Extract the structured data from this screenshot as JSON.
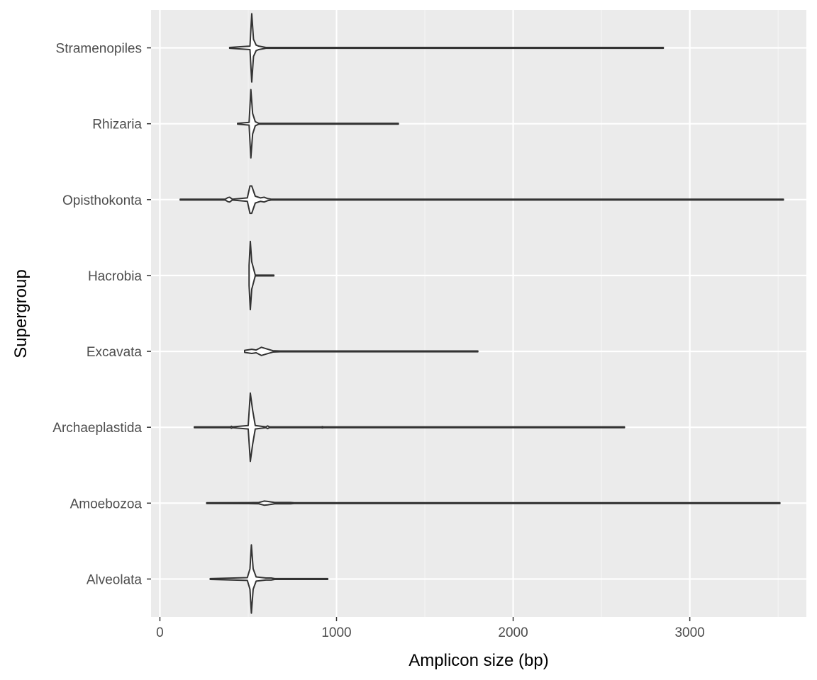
{
  "chart_data": {
    "type": "violin",
    "title": "",
    "xlabel": "Amplicon size (bp)",
    "ylabel": "Supergroup",
    "xlim": [
      -50,
      3660
    ],
    "x_ticks": [
      0,
      1000,
      2000,
      3000
    ],
    "x_tick_labels": [
      "0",
      "1000",
      "2000",
      "3000"
    ],
    "grid": true,
    "colors": {
      "panel_background": "#ebebeb",
      "grid_major": "#ffffff",
      "grid_minor": "#f5f5f5",
      "violin_outline": "#333333",
      "violin_fill": "#ffffff"
    },
    "categories": [
      "Stramenopiles",
      "Rhizaria",
      "Opisthokonta",
      "Hacrobia",
      "Excavata",
      "Archaeplastida",
      "Amoebozoa",
      "Alveolata"
    ],
    "violins": [
      {
        "name": "Stramenopiles",
        "min": 395,
        "max": 2850,
        "density": [
          [
            395,
            0.012
          ],
          [
            510,
            0.05
          ],
          [
            520,
            1.0
          ],
          [
            530,
            0.25
          ],
          [
            545,
            0.08
          ],
          [
            560,
            0.05
          ],
          [
            600,
            0.012
          ],
          [
            2850,
            0.012
          ]
        ]
      },
      {
        "name": "Rhizaria",
        "min": 440,
        "max": 1350,
        "density": [
          [
            440,
            0.012
          ],
          [
            505,
            0.04
          ],
          [
            515,
            1.0
          ],
          [
            525,
            0.3
          ],
          [
            540,
            0.06
          ],
          [
            560,
            0.012
          ],
          [
            1350,
            0.012
          ]
        ]
      },
      {
        "name": "Opisthokonta",
        "min": 115,
        "max": 3530,
        "density": [
          [
            115,
            0.012
          ],
          [
            370,
            0.012
          ],
          [
            385,
            0.06
          ],
          [
            395,
            0.07
          ],
          [
            410,
            0.012
          ],
          [
            495,
            0.05
          ],
          [
            510,
            0.4
          ],
          [
            520,
            0.4
          ],
          [
            540,
            0.1
          ],
          [
            570,
            0.05
          ],
          [
            590,
            0.07
          ],
          [
            610,
            0.03
          ],
          [
            630,
            0.012
          ],
          [
            3530,
            0.012
          ]
        ]
      },
      {
        "name": "Hacrobia",
        "min": 505,
        "max": 645,
        "density": [
          [
            505,
            0.3
          ],
          [
            512,
            1.0
          ],
          [
            520,
            0.4
          ],
          [
            540,
            0.012
          ],
          [
            645,
            0.012
          ]
        ]
      },
      {
        "name": "Excavata",
        "min": 480,
        "max": 1800,
        "density": [
          [
            480,
            0.03
          ],
          [
            520,
            0.06
          ],
          [
            545,
            0.04
          ],
          [
            575,
            0.12
          ],
          [
            600,
            0.08
          ],
          [
            640,
            0.02
          ],
          [
            680,
            0.012
          ],
          [
            1800,
            0.012
          ]
        ]
      },
      {
        "name": "Archaeplastida",
        "min": 195,
        "max": 2630,
        "density": [
          [
            195,
            0.012
          ],
          [
            400,
            0.012
          ],
          [
            405,
            0.03
          ],
          [
            410,
            0.012
          ],
          [
            500,
            0.05
          ],
          [
            512,
            1.0
          ],
          [
            525,
            0.5
          ],
          [
            540,
            0.05
          ],
          [
            600,
            0.012
          ],
          [
            610,
            0.04
          ],
          [
            620,
            0.012
          ],
          [
            915,
            0.012
          ],
          [
            920,
            0.02
          ],
          [
            925,
            0.012
          ],
          [
            2630,
            0.012
          ]
        ]
      },
      {
        "name": "Amoebozoa",
        "min": 265,
        "max": 3510,
        "density": [
          [
            265,
            0.012
          ],
          [
            500,
            0.015
          ],
          [
            560,
            0.02
          ],
          [
            590,
            0.06
          ],
          [
            610,
            0.05
          ],
          [
            650,
            0.02
          ],
          [
            740,
            0.02
          ],
          [
            760,
            0.012
          ],
          [
            3510,
            0.012
          ]
        ]
      },
      {
        "name": "Alveolata",
        "min": 285,
        "max": 950,
        "density": [
          [
            285,
            0.012
          ],
          [
            495,
            0.04
          ],
          [
            510,
            0.3
          ],
          [
            518,
            1.0
          ],
          [
            528,
            0.3
          ],
          [
            545,
            0.06
          ],
          [
            600,
            0.03
          ],
          [
            630,
            0.03
          ],
          [
            650,
            0.012
          ],
          [
            950,
            0.012
          ]
        ]
      }
    ]
  }
}
